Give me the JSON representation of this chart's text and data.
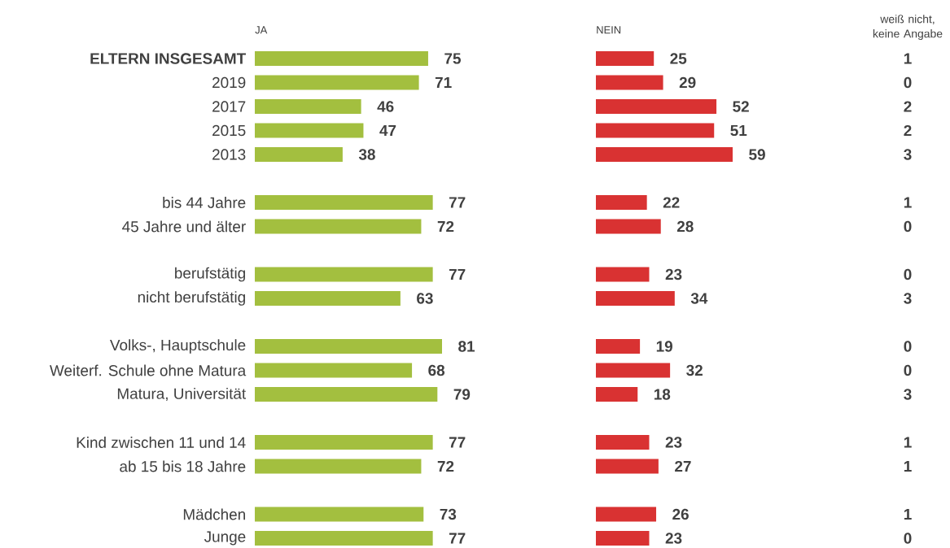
{
  "chart_data": [
    {
      "type": "bar",
      "orientation": "horizontal",
      "title": "JA",
      "categories": [
        "ELTERN INSGESAMT",
        "2019",
        "2017",
        "2015",
        "2013",
        null,
        "bis 44 Jahre",
        "45 Jahre und älter",
        null,
        "berufstätig",
        "nicht berufstätig",
        null,
        "Volks-, Hauptschule",
        "Weiterf. Schule ohne Matura",
        "Matura, Universität",
        null,
        "Kind zwischen 11 und 14",
        "ab 15 bis 18 Jahre",
        null,
        "Mädchen",
        "Junge"
      ],
      "values": [
        75,
        71,
        46,
        47,
        38,
        null,
        77,
        72,
        null,
        77,
        63,
        null,
        81,
        68,
        79,
        null,
        77,
        72,
        null,
        73,
        77
      ],
      "color": "#a3bf3f",
      "data_labels": true,
      "tick_labels": "y"
    },
    {
      "type": "bar",
      "orientation": "horizontal",
      "title": "NEIN",
      "values": [
        25,
        29,
        52,
        51,
        59,
        null,
        22,
        28,
        null,
        23,
        34,
        null,
        19,
        32,
        18,
        null,
        23,
        27,
        null,
        26,
        23
      ],
      "color": "#d93232",
      "data_labels": true,
      "tick_labels": false
    },
    {
      "type": "other",
      "title": "weiß nicht, keine Angabe",
      "values": [
        1,
        0,
        2,
        2,
        3,
        null,
        1,
        0,
        null,
        0,
        3,
        null,
        0,
        0,
        3,
        null,
        1,
        1,
        null,
        1,
        0
      ],
      "data_labels": true
    }
  ]
}
